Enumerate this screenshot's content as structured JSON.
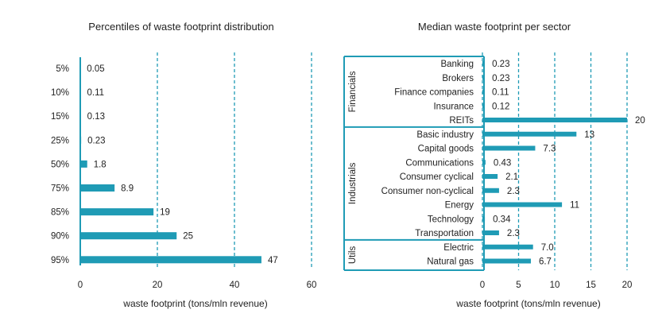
{
  "chart_data": [
    {
      "type": "bar",
      "orientation": "horizontal",
      "title": "Percentiles of waste footprint distribution",
      "xlabel": "waste footprint (tons/mln revenue)",
      "ylabel": "",
      "categories": [
        "5%",
        "10%",
        "15%",
        "25%",
        "50%",
        "75%",
        "85%",
        "90%",
        "95%"
      ],
      "values": [
        0.05,
        0.11,
        0.13,
        0.23,
        1.8,
        8.9,
        19,
        25,
        47
      ],
      "value_labels": [
        "0.05",
        "0.11",
        "0.13",
        "0.23",
        "1.8",
        "8.9",
        "19",
        "25",
        "47"
      ],
      "xlim": [
        0,
        60
      ],
      "xticks": [
        0,
        20,
        40,
        60
      ],
      "grid": "vertical dashed",
      "color": "#1f9bb5"
    },
    {
      "type": "bar",
      "orientation": "horizontal",
      "title": "Median waste footprint per sector",
      "xlabel": "waste footprint (tons/mln revenue)",
      "ylabel": "",
      "groups": [
        {
          "label": "Financials",
          "categories": [
            "Banking",
            "Brokers",
            "Finance companies",
            "Insurance",
            "REITs"
          ]
        },
        {
          "label": "Industrials",
          "categories": [
            "Basic industry",
            "Capital goods",
            "Communications",
            "Consumer cyclical",
            "Consumer non-cyclical",
            "Energy",
            "Technology",
            "Transportation"
          ]
        },
        {
          "label": "Utils",
          "categories": [
            "Electric",
            "Natural gas"
          ]
        }
      ],
      "categories": [
        "Banking",
        "Brokers",
        "Finance companies",
        "Insurance",
        "REITs",
        "Basic industry",
        "Capital goods",
        "Communications",
        "Consumer cyclical",
        "Consumer non-cyclical",
        "Energy",
        "Technology",
        "Transportation",
        "Electric",
        "Natural gas"
      ],
      "values": [
        0.23,
        0.23,
        0.11,
        0.12,
        20,
        13,
        7.3,
        0.43,
        2.1,
        2.3,
        11,
        0.34,
        2.3,
        7.0,
        6.7
      ],
      "value_labels": [
        "0.23",
        "0.23",
        "0.11",
        "0.12",
        "20",
        "13",
        "7.3",
        "0.43",
        "2.1",
        "2.3",
        "11",
        "0.34",
        "2.3",
        "7.0",
        "6.7"
      ],
      "xlim": [
        0,
        20
      ],
      "xticks": [
        0,
        5,
        10,
        15,
        20
      ],
      "grid": "vertical dashed",
      "color": "#1f9bb5"
    }
  ]
}
